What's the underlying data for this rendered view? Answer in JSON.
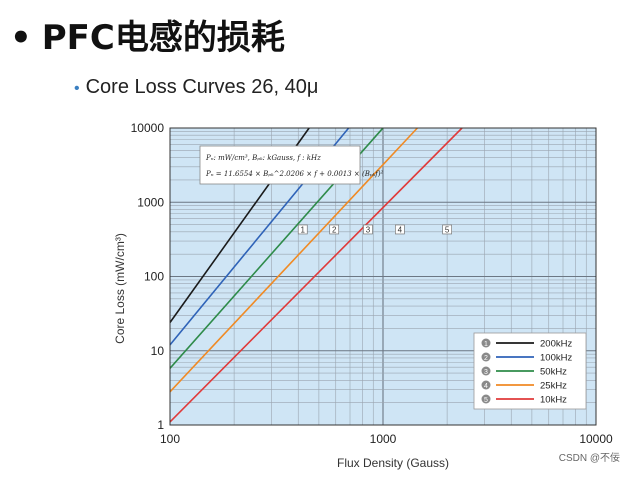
{
  "slide": {
    "bullet": "•",
    "title": "PFC电感的损耗",
    "subtitle_bullet": "•",
    "subtitle": "Core Loss Curves 26, 40μ"
  },
  "formula": {
    "line1": "Pₙ: mW/cm³,  Bₚₖ: kGauss,  f : kHz",
    "line2": "Pₙ = 11.6554 × Bₚₖ^2.0206 × f + 0.0013 × (Bₚₖf)²"
  },
  "watermark": "CSDN @不佞",
  "colors": {
    "plot_bg": "#cfe5f5",
    "grid": "#9aa5b0",
    "grid_major": "#6c7784",
    "c200": "#1a1a1a",
    "c100": "#2f63b8",
    "c50": "#2e8b4a",
    "c25": "#f08a24",
    "c10": "#e03a3a"
  },
  "chart_data": {
    "type": "line",
    "title": "",
    "xlabel": "Flux Density (Gauss)",
    "ylabel": "Core Loss (mW/cm³)",
    "xscale": "log",
    "yscale": "log",
    "xlim": [
      100,
      10000
    ],
    "ylim": [
      1,
      10000
    ],
    "xticks": [
      "100",
      "1000",
      "10000"
    ],
    "yticks": [
      "1",
      "10",
      "100",
      "1000",
      "10000"
    ],
    "grid": true,
    "legend_position": "bottom-right",
    "series": [
      {
        "name": "200kHz",
        "marker": "1",
        "color": "#1a1a1a",
        "x": [
          100,
          450
        ],
        "y": [
          24,
          10000
        ],
        "label_at": [
          420,
          430
        ]
      },
      {
        "name": "100kHz",
        "marker": "2",
        "color": "#2f63b8",
        "x": [
          100,
          690
        ],
        "y": [
          12,
          10000
        ],
        "label_at": [
          590,
          430
        ]
      },
      {
        "name": "50kHz",
        "marker": "3",
        "color": "#2e8b4a",
        "x": [
          100,
          1000
        ],
        "y": [
          5.8,
          10000
        ],
        "label_at": [
          850,
          430
        ]
      },
      {
        "name": "25kHz",
        "marker": "4",
        "color": "#f08a24",
        "x": [
          100,
          1450
        ],
        "y": [
          2.8,
          10000
        ],
        "label_at": [
          1200,
          430
        ]
      },
      {
        "name": "10kHz",
        "marker": "5",
        "color": "#e03a3a",
        "x": [
          100,
          2350
        ],
        "y": [
          1.1,
          10000
        ],
        "label_at": [
          2000,
          430
        ]
      }
    ]
  }
}
